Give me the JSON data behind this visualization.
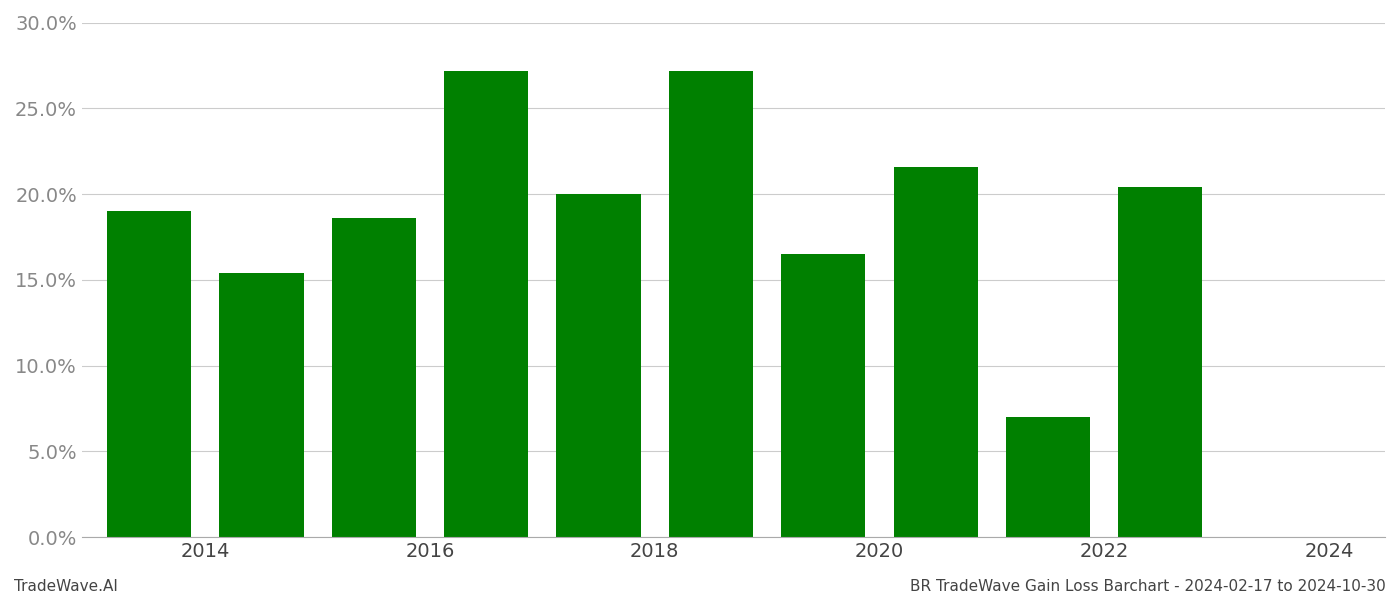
{
  "bar_positions": [
    0,
    1,
    2,
    3,
    4,
    5,
    6,
    7,
    8,
    9
  ],
  "values": [
    0.19,
    0.154,
    0.186,
    0.272,
    0.2,
    0.272,
    0.165,
    0.216,
    0.07,
    0.204
  ],
  "bar_color": "#008000",
  "background_color": "#ffffff",
  "grid_color": "#cccccc",
  "footer_left": "TradeWave.AI",
  "footer_right": "BR TradeWave Gain Loss Barchart - 2024-02-17 to 2024-10-30",
  "ylim": [
    0,
    0.3
  ],
  "yticks": [
    0.0,
    0.05,
    0.1,
    0.15,
    0.2,
    0.25,
    0.3
  ],
  "xtick_positions": [
    0.5,
    2.5,
    4.5,
    6.5,
    8.5,
    10.5
  ],
  "xtick_labels": [
    "2014",
    "2016",
    "2018",
    "2020",
    "2022",
    "2024"
  ],
  "bar_width": 0.75,
  "tick_fontsize": 14,
  "footer_fontsize": 11,
  "xlim": [
    -0.6,
    11.0
  ]
}
